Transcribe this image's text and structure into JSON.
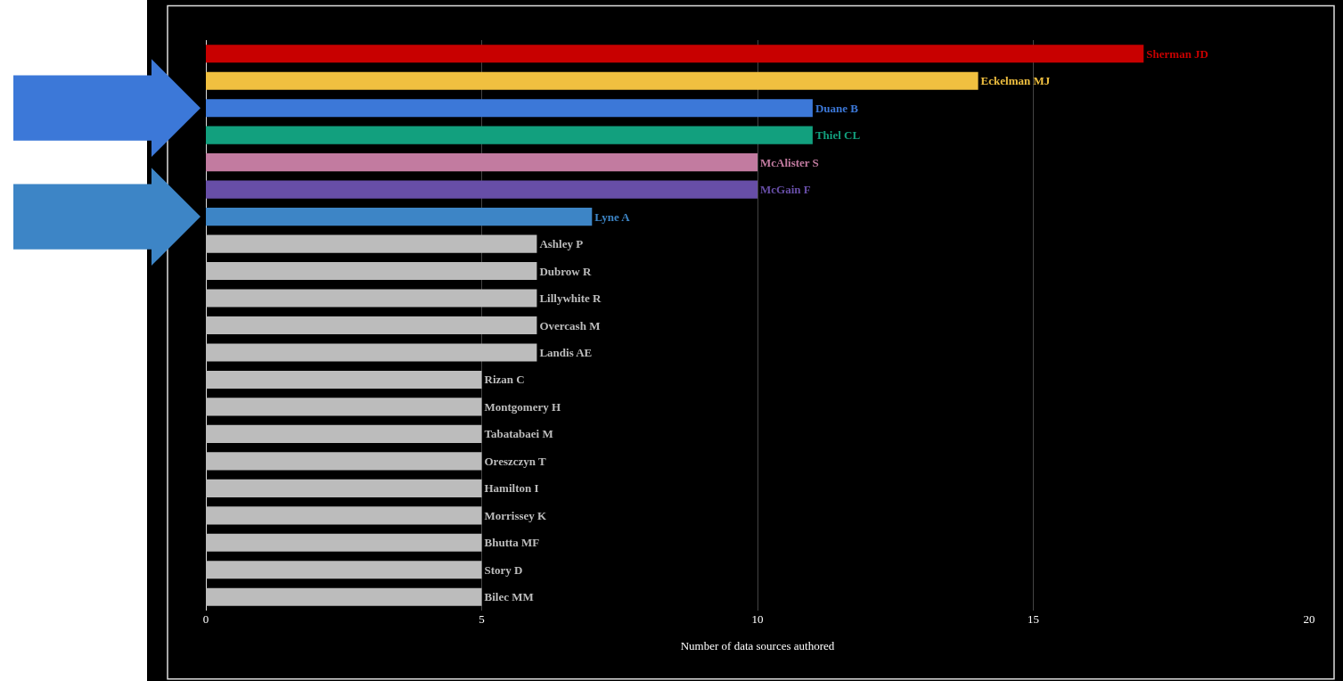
{
  "chart_data": {
    "type": "bar",
    "orientation": "horizontal",
    "xlabel": "Number of data sources authored",
    "categories": [
      "Sherman JD",
      "Eckelman MJ",
      "Duane B",
      "Thiel CL",
      "McAlister S",
      "McGain F",
      "Lyne A",
      "Ashley P",
      "Dubrow R",
      "Lillywhite R",
      "Overcash M",
      "Landis AE",
      "Rizan C",
      "Montgomery H",
      "Tabatabaei M",
      "Oreszczyn T",
      "Hamilton I",
      "Morrissey K",
      "Bhutta MF",
      "Story D",
      "Bilec MM"
    ],
    "values": [
      17,
      14,
      11,
      11,
      10,
      10,
      7,
      6,
      6,
      6,
      6,
      6,
      5,
      5,
      5,
      5,
      5,
      5,
      5,
      5,
      5
    ],
    "colors": [
      "#c80000",
      "#f0c040",
      "#3c78d8",
      "#12a07e",
      "#c27ba0",
      "#674ea7",
      "#3d85c6",
      "#bcbcbc",
      "#bcbcbc",
      "#bcbcbc",
      "#bcbcbc",
      "#bcbcbc",
      "#bcbcbc",
      "#bcbcbc",
      "#bcbcbc",
      "#bcbcbc",
      "#bcbcbc",
      "#bcbcbc",
      "#bcbcbc",
      "#bcbcbc",
      "#bcbcbc"
    ],
    "xlim": [
      0,
      20
    ],
    "xticks": [
      0,
      5,
      10,
      15,
      20
    ],
    "grid": "x",
    "tick_labels": "x",
    "legend": false
  }
}
